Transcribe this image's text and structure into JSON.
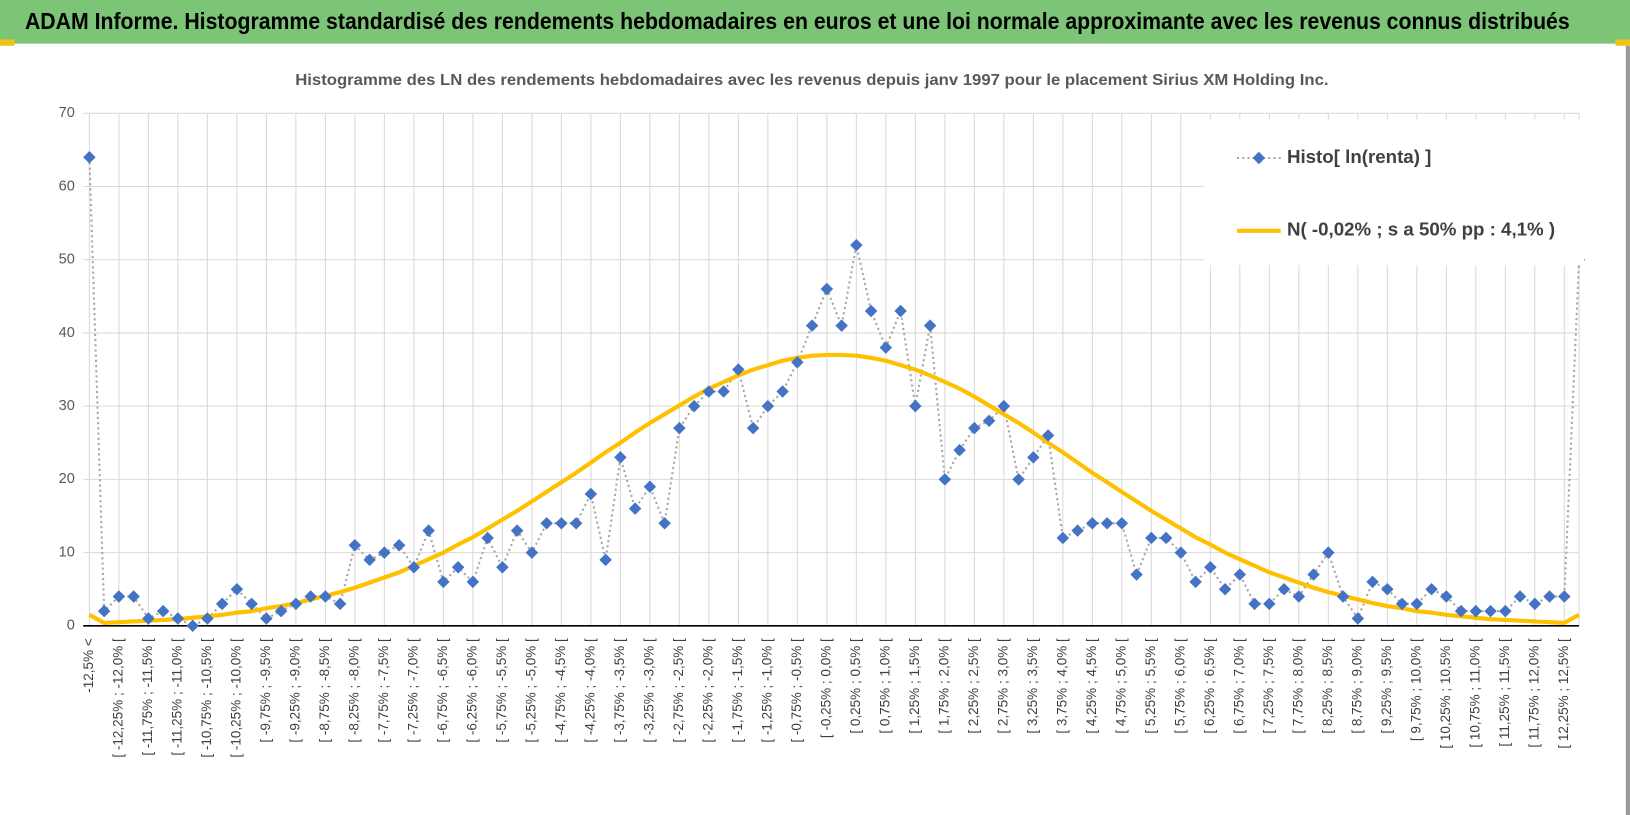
{
  "header": {
    "title": "ADAM Informe. Histogramme standardisé des rendements hebdomadaires en euros et une loi normale approximante avec les revenus connus distribués"
  },
  "chart_data": {
    "type": "line",
    "title": "Histogramme  des LN des rendements  hebdomadaires avec les revenus depuis janv 1997 pour le placement Sirius XM Holding Inc.",
    "categories": [
      "-12,5% <",
      null,
      "[ -12,25% ; -12,0% [",
      null,
      "[ -11,75% ; -11,5% [",
      null,
      "[ -11,25% ; -11,0% [",
      null,
      "[ -10,75% ; -10,5% [",
      null,
      "[ -10,25% ; -10,0% [",
      null,
      "[ -9,75% ; -9,5% [",
      null,
      "[ -9,25% ; -9,0% [",
      null,
      "[ -8,75% ; -8,5% [",
      null,
      "[ -8,25% ; -8,0% [",
      null,
      "[ -7,75% ; -7,5% [",
      null,
      "[ -7,25% ; -7,0% [",
      null,
      "[ -6,75% ; -6,5% [",
      null,
      "[ -6,25% ; -6,0% [",
      null,
      "[ -5,75% ; -5,5% [",
      null,
      "[ -5,25% ; -5,0% [",
      null,
      "[ -4,75% ; -4,5% [",
      null,
      "[ -4,25% ; -4,0% [",
      null,
      "[ -3,75% ; -3,5% [",
      null,
      "[ -3,25% ; -3,0% [",
      null,
      "[ -2,75% ; -2,5% [",
      null,
      "[ -2,25% ; -2,0% [",
      null,
      "[ -1,75% ; -1,5% [",
      null,
      "[ -1,25% ; -1,0% [",
      null,
      "[ -0,75% ; -0,5% [",
      null,
      "[ -0,25% ; 0,0% [",
      null,
      "[ 0,25% ; 0,5% [",
      null,
      "[ 0,75% ; 1,0% [",
      null,
      "[ 1,25% ; 1,5% [",
      null,
      "[ 1,75% ; 2,0% [",
      null,
      "[ 2,25% ; 2,5% [",
      null,
      "[ 2,75% ; 3,0% [",
      null,
      "[ 3,25% ; 3,5% [",
      null,
      "[ 3,75% ; 4,0% [",
      null,
      "[ 4,25% ; 4,5% [",
      null,
      "[ 4,75% ; 5,0% [",
      null,
      "[ 5,25% ; 5,5% [",
      null,
      "[ 5,75% ; 6,0% [",
      null,
      "[ 6,25% ; 6,5% [",
      null,
      "[ 6,75% ; 7,0% [",
      null,
      "[ 7,25% ; 7,5% [",
      null,
      "[ 7,75% ; 8,0% [",
      null,
      "[ 8,25% ; 8,5% [",
      null,
      "[ 8,75% ; 9,0% [",
      null,
      "[ 9,25% ; 9,5% [",
      null,
      "[ 9,75% ; 10,0% [",
      null,
      "[ 10,25% ; 10,5% [",
      null,
      "[ 10,75% ; 11,0% [",
      null,
      "[ 11,25% ; 11,5% [",
      null,
      "[ 11,75% ; 12,0% [",
      null,
      "[ 12,25% ; 12,5% [",
      null
    ],
    "series": [
      {
        "name": "Histo[ ln(renta) ]",
        "color": "#4472c4",
        "line_color": "#a6a6a6",
        "values": [
          64,
          2,
          4,
          4,
          1,
          2,
          1,
          0,
          1,
          3,
          5,
          3,
          1,
          2,
          3,
          4,
          4,
          3,
          11,
          9,
          10,
          11,
          8,
          13,
          6,
          8,
          6,
          12,
          8,
          13,
          10,
          14,
          14,
          14,
          18,
          9,
          23,
          16,
          19,
          14,
          27,
          30,
          32,
          32,
          35,
          27,
          30,
          32,
          36,
          41,
          46,
          41,
          52,
          43,
          38,
          43,
          30,
          41,
          20,
          24,
          27,
          28,
          30,
          20,
          23,
          26,
          12,
          13,
          14,
          14,
          14,
          7,
          12,
          12,
          10,
          6,
          8,
          5,
          7,
          3,
          3,
          5,
          4,
          7,
          10,
          4,
          1,
          6,
          5,
          3,
          3,
          5,
          4,
          2,
          2,
          2,
          2,
          4,
          3,
          4,
          4,
          50
        ]
      },
      {
        "name": "N( -0,02% ; s a 50% pp : 4,1% )",
        "color": "#ffc000",
        "values": [
          1.5,
          0.4,
          0.5,
          0.6,
          0.7,
          0.8,
          0.9,
          1.1,
          1.3,
          1.5,
          1.8,
          2.0,
          2.4,
          2.7,
          3.1,
          3.6,
          4.1,
          4.6,
          5.2,
          5.9,
          6.6,
          7.3,
          8.2,
          9.1,
          10.0,
          11.1,
          12.1,
          13.3,
          14.5,
          15.7,
          17.0,
          18.3,
          19.6,
          20.9,
          22.3,
          23.7,
          25.0,
          26.4,
          27.7,
          28.9,
          30.1,
          31.3,
          32.4,
          33.3,
          34.2,
          35.0,
          35.6,
          36.2,
          36.6,
          36.9,
          37.0,
          37.0,
          36.9,
          36.6,
          36.2,
          35.6,
          35.0,
          34.2,
          33.3,
          32.4,
          31.3,
          30.1,
          28.9,
          27.7,
          26.4,
          25.0,
          23.7,
          22.3,
          20.9,
          19.6,
          18.3,
          17.0,
          15.7,
          14.5,
          13.3,
          12.1,
          11.1,
          10.0,
          9.1,
          8.2,
          7.3,
          6.6,
          5.9,
          5.2,
          4.6,
          4.1,
          3.6,
          3.1,
          2.7,
          2.4,
          2.0,
          1.8,
          1.5,
          1.3,
          1.1,
          0.9,
          0.8,
          0.7,
          0.6,
          0.5,
          0.4,
          1.5
        ]
      }
    ],
    "ylim": [
      0,
      70
    ],
    "yticks": [
      0,
      10,
      20,
      30,
      40,
      50,
      60,
      70
    ],
    "grid": true,
    "legend": "top-right"
  }
}
